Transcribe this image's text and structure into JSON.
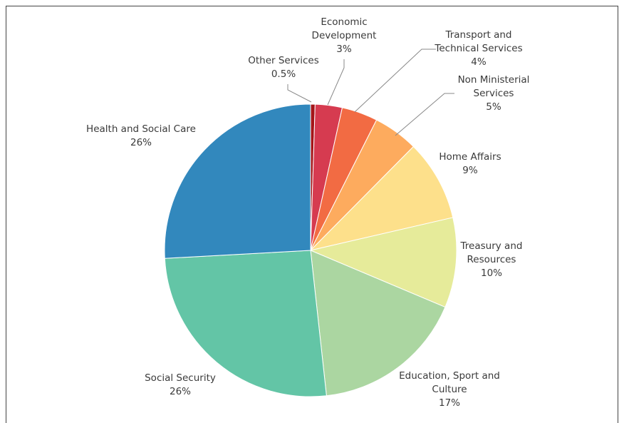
{
  "chart_data": {
    "type": "pie",
    "categories": [
      "Other Services",
      "Economic Development",
      "Transport and Technical Services",
      "Non Ministerial Services",
      "Home Affairs",
      "Treasury and Resources",
      "Education, Sport and Culture",
      "Social Security",
      "Health and Social Care"
    ],
    "values": [
      0.5,
      3,
      4,
      5,
      9,
      10,
      17,
      26,
      26
    ],
    "value_labels": [
      "0.5%",
      "3%",
      "4%",
      "5%",
      "9%",
      "10%",
      "17%",
      "26%",
      "26%"
    ],
    "colors": [
      "#a4161a",
      "#d63b50",
      "#f26b43",
      "#fdab5e",
      "#fde08b",
      "#e6eb9a",
      "#abd6a1",
      "#63c5a6",
      "#3288bd"
    ]
  }
}
